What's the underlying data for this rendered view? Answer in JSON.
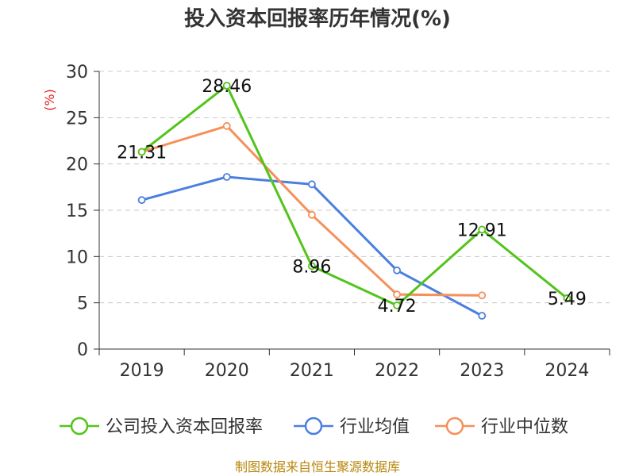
{
  "chart_data": {
    "type": "line",
    "title": "投入资本回报率历年情况(%)",
    "ylabel": "(%)",
    "categories": [
      "2019",
      "2020",
      "2021",
      "2022",
      "2023",
      "2024"
    ],
    "ylim": [
      0,
      30
    ],
    "yticks": [
      0,
      5,
      10,
      15,
      20,
      25,
      30
    ],
    "grid": "horizontal-dashed",
    "legend_position": "bottom",
    "series": [
      {
        "name": "公司投入资本回报率",
        "color": "#52c41a",
        "values": [
          21.31,
          28.46,
          8.96,
          4.72,
          12.91,
          5.49
        ],
        "labels": [
          "21.31",
          "28.46",
          "8.96",
          "4.72",
          "12.91",
          "5.49"
        ]
      },
      {
        "name": "行业均值",
        "color": "#4a7fe0",
        "values": [
          16.1,
          18.6,
          17.8,
          8.5,
          3.6,
          null
        ]
      },
      {
        "name": "行业中位数",
        "color": "#f5905a",
        "values": [
          21.3,
          24.1,
          14.5,
          5.9,
          5.8,
          null
        ]
      }
    ]
  },
  "source": "制图数据来自恒生聚源数据库"
}
